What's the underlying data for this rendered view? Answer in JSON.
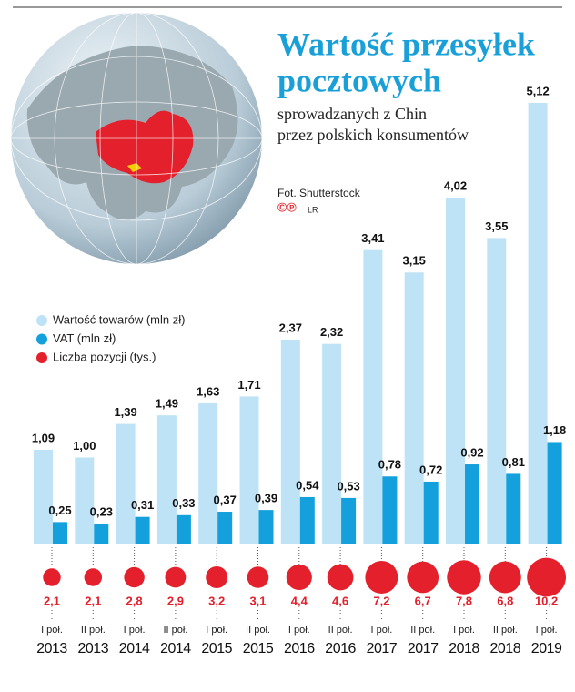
{
  "chart_data": {
    "type": "bar",
    "title": [
      "Wartość przesyłek",
      "pocztowych"
    ],
    "subtitle": [
      "sprowadzanych z Chin",
      "przez polskich konsumentów"
    ],
    "credit": "Fot. Shutterstock",
    "marks": "©℗",
    "author": "ŁR",
    "categories": [
      [
        "I poł.",
        "2013"
      ],
      [
        "II poł.",
        "2013"
      ],
      [
        "I poł.",
        "2014"
      ],
      [
        "II poł.",
        "2014"
      ],
      [
        "I poł.",
        "2015"
      ],
      [
        "II poł.",
        "2015"
      ],
      [
        "I poł.",
        "2016"
      ],
      [
        "II poł.",
        "2016"
      ],
      [
        "I poł.",
        "2017"
      ],
      [
        "II poł.",
        "2017"
      ],
      [
        "I poł.",
        "2018"
      ],
      [
        "II poł.",
        "2018"
      ],
      [
        "I poł.",
        "2019"
      ]
    ],
    "series": [
      {
        "name": "Wartość towarów (mln zł)",
        "color": "#bfe3f6",
        "mark": "bar",
        "values": [
          1.09,
          1.0,
          1.39,
          1.49,
          1.63,
          1.71,
          2.37,
          2.32,
          3.41,
          3.15,
          4.02,
          3.55,
          5.12
        ],
        "value_labels": [
          "1,09",
          "1,00",
          "1,39",
          "1,49",
          "1,63",
          "1,71",
          "2,37",
          "2,32",
          "3,41",
          "3,15",
          "4,02",
          "3,55",
          "5,12"
        ]
      },
      {
        "name": "VAT (mln zł)",
        "color": "#13a0dc",
        "mark": "bar",
        "values": [
          0.25,
          0.23,
          0.31,
          0.33,
          0.37,
          0.39,
          0.54,
          0.53,
          0.78,
          0.72,
          0.92,
          0.81,
          1.18
        ],
        "value_labels": [
          "0,25",
          "0,23",
          "0,31",
          "0,33",
          "0,37",
          "0,39",
          "0,54",
          "0,53",
          "0,78",
          "0,72",
          "0,92",
          "0,81",
          "1,18"
        ]
      },
      {
        "name": "Liczba pozycji (tys.)",
        "color": "#e3202b",
        "mark": "bubble",
        "values": [
          2.1,
          2.1,
          2.8,
          2.9,
          3.2,
          3.1,
          4.4,
          4.6,
          7.2,
          6.7,
          7.8,
          6.8,
          10.2
        ],
        "value_labels": [
          "2,1",
          "2,1",
          "2,8",
          "2,9",
          "3,2",
          "3,1",
          "4,4",
          "4,6",
          "7,2",
          "6,7",
          "7,8",
          "6,8",
          "10,2"
        ]
      }
    ]
  }
}
